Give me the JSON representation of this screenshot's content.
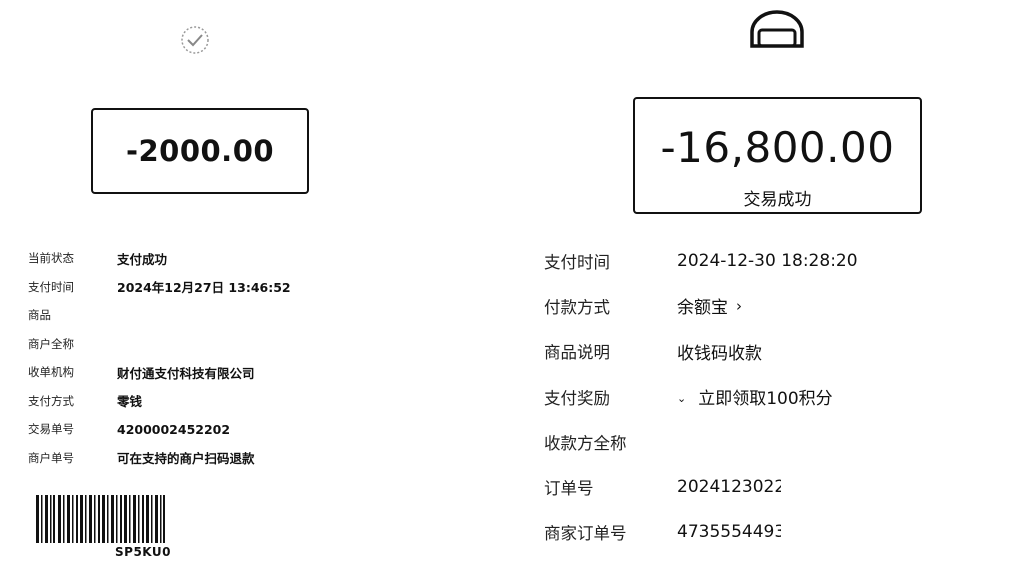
{
  "left_receipt": {
    "amount": "-2000.00",
    "rows": [
      {
        "label": "当前状态",
        "value": "支付成功"
      },
      {
        "label": "支付时间",
        "value": "2024年12月27日 13:46:52"
      },
      {
        "label": "商品",
        "value": ""
      },
      {
        "label": "商户全称",
        "value": ""
      },
      {
        "label": "收单机构",
        "value": "财付通支付科技有限公司"
      },
      {
        "label": "支付方式",
        "value": "零钱"
      },
      {
        "label": "交易单号",
        "value": "4200002452202"
      },
      {
        "label": "商户单号",
        "value": "可在支持的商户扫码退款"
      }
    ],
    "barcode_text": "SP5KU0"
  },
  "right_receipt": {
    "amount": "-16,800.00",
    "status": "交易成功",
    "rows": [
      {
        "label": "支付时间",
        "value": "2024-12-30 18:28:20"
      },
      {
        "label": "付款方式",
        "value": "余额宝"
      },
      {
        "label": "商品说明",
        "value": "收钱码收款"
      },
      {
        "label": "支付奖励",
        "value": "立即领取100积分"
      },
      {
        "label": "收款方全称",
        "value": ""
      },
      {
        "label": "订单号",
        "value": "2024123022"
      },
      {
        "label": "商家订单号",
        "value": "4735554493"
      }
    ]
  },
  "icons": {
    "left_logo": "wechat-pay-logo-icon",
    "right_logo": "alipay-logo-icon",
    "chevron": "chevron-right-icon",
    "dropdown": "chevron-down-icon"
  }
}
